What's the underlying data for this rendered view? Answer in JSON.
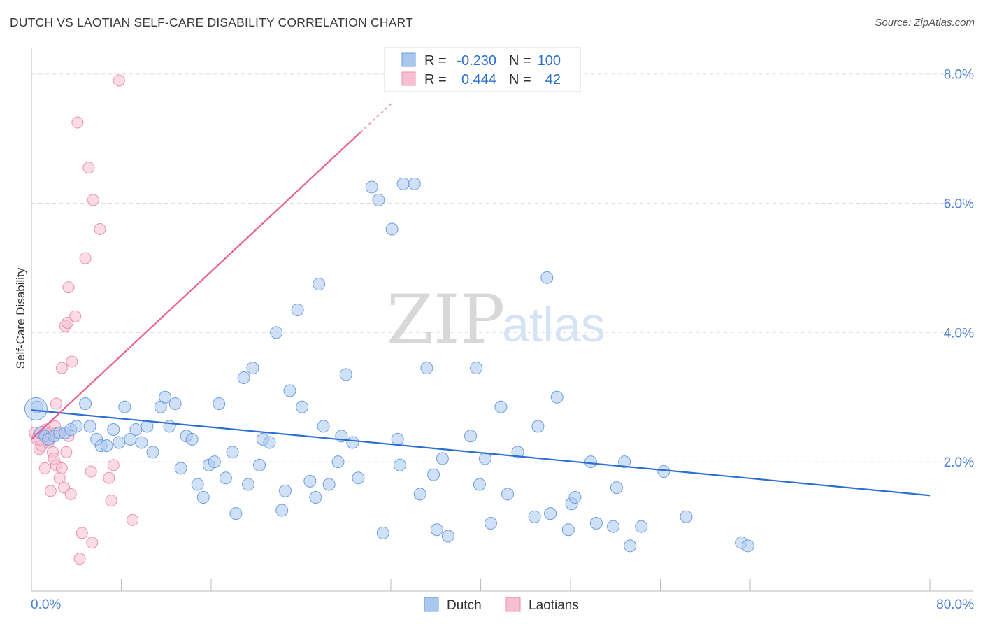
{
  "title": "DUTCH VS LAOTIAN SELF-CARE DISABILITY CORRELATION CHART",
  "source": "Source: ZipAtlas.com",
  "watermark": {
    "zip": "ZIP",
    "atlas": "atlas"
  },
  "colors": {
    "dutch_fill": "#a9c8f0",
    "dutch_stroke": "#6b9ee0",
    "dutch_line": "#2a6fd1",
    "laotian_fill": "#f7bfd2",
    "laotian_stroke": "#ec8fb0",
    "laotian_line": "#e8608f",
    "tick_text": "#4a7fd4",
    "grid": "#dddddd"
  },
  "legend": {
    "rows": [
      {
        "r_label": "R =",
        "r_value": "-0.230",
        "n_label": "N =",
        "n_value": "100",
        "series": "dutch"
      },
      {
        "r_label": "R =",
        "r_value": "0.444",
        "n_label": "N =",
        "n_value": "42",
        "series": "laotian"
      }
    ]
  },
  "bottom_legend": [
    "Dutch",
    "Laotians"
  ],
  "chart_data": {
    "type": "scatter",
    "title": "DUTCH VS LAOTIAN SELF-CARE DISABILITY CORRELATION CHART",
    "xlabel": "",
    "ylabel": "Self-Care Disability",
    "xlim": [
      0,
      80
    ],
    "ylim": [
      0,
      8.3
    ],
    "x_tick_labels": [
      "0.0%",
      "80.0%"
    ],
    "y_ticks": [
      2,
      4,
      6,
      8
    ],
    "y_tick_labels": [
      "2.0%",
      "4.0%",
      "6.0%",
      "8.0%"
    ],
    "grid": true,
    "legend_position": "top-center",
    "series": [
      {
        "name": "Dutch",
        "r": -0.23,
        "n": 100,
        "trend": {
          "x": [
            0,
            80
          ],
          "y": [
            2.8,
            1.48
          ]
        },
        "points": [
          [
            0.5,
            2.85
          ],
          [
            0.8,
            2.45
          ],
          [
            1.2,
            2.4
          ],
          [
            1.5,
            2.35
          ],
          [
            2.0,
            2.4
          ],
          [
            2.5,
            2.45
          ],
          [
            3.0,
            2.45
          ],
          [
            3.5,
            2.5
          ],
          [
            4.0,
            2.55
          ],
          [
            4.8,
            2.9
          ],
          [
            5.2,
            2.55
          ],
          [
            5.8,
            2.35
          ],
          [
            6.2,
            2.25
          ],
          [
            6.7,
            2.25
          ],
          [
            7.3,
            2.5
          ],
          [
            7.8,
            2.3
          ],
          [
            8.3,
            2.85
          ],
          [
            8.8,
            2.35
          ],
          [
            9.3,
            2.5
          ],
          [
            9.8,
            2.3
          ],
          [
            10.3,
            2.55
          ],
          [
            10.8,
            2.15
          ],
          [
            11.5,
            2.85
          ],
          [
            11.9,
            3.0
          ],
          [
            12.3,
            2.55
          ],
          [
            12.8,
            2.9
          ],
          [
            13.3,
            1.9
          ],
          [
            13.8,
            2.4
          ],
          [
            14.3,
            2.35
          ],
          [
            14.8,
            1.65
          ],
          [
            15.3,
            1.45
          ],
          [
            15.8,
            1.95
          ],
          [
            16.3,
            2.0
          ],
          [
            16.7,
            2.9
          ],
          [
            17.3,
            1.75
          ],
          [
            17.9,
            2.15
          ],
          [
            18.2,
            1.2
          ],
          [
            18.9,
            3.3
          ],
          [
            19.3,
            1.65
          ],
          [
            19.7,
            3.45
          ],
          [
            20.3,
            1.95
          ],
          [
            20.6,
            2.35
          ],
          [
            21.2,
            2.3
          ],
          [
            21.8,
            4.0
          ],
          [
            22.3,
            1.25
          ],
          [
            22.6,
            1.55
          ],
          [
            23.0,
            3.1
          ],
          [
            23.7,
            4.35
          ],
          [
            24.1,
            2.85
          ],
          [
            24.8,
            1.7
          ],
          [
            25.3,
            1.45
          ],
          [
            25.6,
            4.75
          ],
          [
            26.0,
            2.55
          ],
          [
            26.5,
            1.65
          ],
          [
            27.3,
            2.0
          ],
          [
            27.6,
            2.4
          ],
          [
            28.0,
            3.35
          ],
          [
            28.6,
            2.3
          ],
          [
            29.1,
            1.75
          ],
          [
            30.3,
            6.25
          ],
          [
            30.9,
            6.05
          ],
          [
            31.3,
            0.9
          ],
          [
            32.1,
            5.6
          ],
          [
            32.6,
            2.35
          ],
          [
            32.8,
            1.95
          ],
          [
            33.1,
            6.3
          ],
          [
            34.1,
            6.3
          ],
          [
            34.6,
            1.5
          ],
          [
            35.2,
            3.45
          ],
          [
            35.8,
            1.8
          ],
          [
            36.1,
            0.95
          ],
          [
            36.6,
            2.05
          ],
          [
            37.1,
            0.85
          ],
          [
            39.1,
            2.4
          ],
          [
            39.6,
            3.45
          ],
          [
            39.9,
            1.65
          ],
          [
            40.4,
            2.05
          ],
          [
            40.9,
            1.05
          ],
          [
            41.8,
            2.85
          ],
          [
            42.4,
            1.5
          ],
          [
            43.3,
            2.15
          ],
          [
            44.8,
            1.15
          ],
          [
            45.1,
            2.55
          ],
          [
            45.9,
            4.85
          ],
          [
            46.2,
            1.2
          ],
          [
            46.8,
            3.0
          ],
          [
            47.8,
            0.95
          ],
          [
            48.1,
            1.35
          ],
          [
            48.4,
            1.45
          ],
          [
            49.8,
            2.0
          ],
          [
            50.3,
            1.05
          ],
          [
            51.8,
            1.0
          ],
          [
            52.1,
            1.6
          ],
          [
            52.8,
            2.0
          ],
          [
            53.3,
            0.7
          ],
          [
            54.3,
            1.0
          ],
          [
            56.3,
            1.85
          ],
          [
            58.3,
            1.15
          ],
          [
            63.2,
            0.75
          ],
          [
            63.8,
            0.7
          ]
        ]
      },
      {
        "name": "Laotians",
        "r": 0.444,
        "n": 42,
        "trend": {
          "x": [
            0,
            30
          ],
          "y": [
            2.35,
            7.2
          ]
        },
        "points": [
          [
            0.3,
            2.45
          ],
          [
            0.5,
            2.35
          ],
          [
            0.7,
            2.2
          ],
          [
            0.9,
            2.25
          ],
          [
            1.1,
            2.4
          ],
          [
            1.3,
            2.5
          ],
          [
            1.5,
            2.3
          ],
          [
            1.7,
            2.45
          ],
          [
            1.9,
            2.15
          ],
          [
            2.1,
            2.55
          ],
          [
            1.2,
            1.9
          ],
          [
            1.7,
            1.55
          ],
          [
            2.0,
            2.05
          ],
          [
            2.2,
            1.95
          ],
          [
            2.3,
            2.45
          ],
          [
            2.5,
            1.75
          ],
          [
            2.7,
            1.9
          ],
          [
            2.9,
            1.6
          ],
          [
            3.1,
            2.15
          ],
          [
            3.3,
            2.4
          ],
          [
            2.2,
            2.9
          ],
          [
            2.7,
            3.45
          ],
          [
            3.0,
            4.1
          ],
          [
            3.2,
            4.15
          ],
          [
            3.3,
            4.7
          ],
          [
            3.5,
            1.5
          ],
          [
            3.6,
            3.55
          ],
          [
            3.9,
            4.25
          ],
          [
            4.1,
            7.25
          ],
          [
            4.3,
            0.5
          ],
          [
            4.5,
            0.9
          ],
          [
            4.8,
            5.15
          ],
          [
            5.1,
            6.55
          ],
          [
            5.3,
            1.85
          ],
          [
            5.4,
            0.75
          ],
          [
            5.5,
            6.05
          ],
          [
            6.1,
            5.6
          ],
          [
            6.9,
            1.75
          ],
          [
            7.1,
            1.4
          ],
          [
            7.3,
            1.95
          ],
          [
            7.8,
            7.9
          ],
          [
            9.0,
            1.1
          ]
        ]
      }
    ]
  }
}
